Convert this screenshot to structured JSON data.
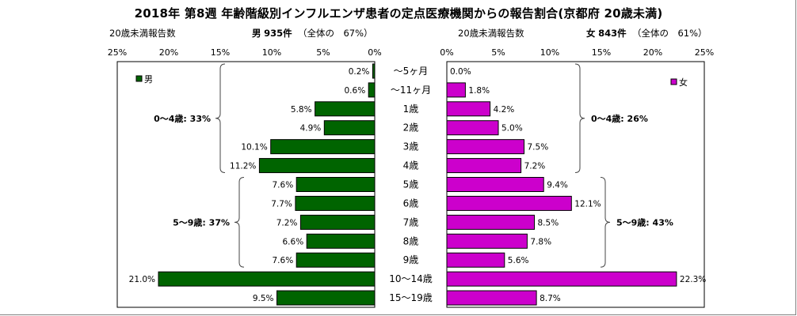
{
  "title": "2018年 第8週 年齢階級別インフルエンザ患者の定点医療機関からの報告割合(京都府 20歳未満)",
  "male_header": {
    "label": "20歳未満報告数",
    "sex": "男",
    "count": "935件",
    "share": "（全体の　67%）"
  },
  "female_header": {
    "label": "20歳未満報告数",
    "sex": "女",
    "count": "843件",
    "share": "（全体の　61%）"
  },
  "chart_data": {
    "type": "bar",
    "orientation": "horizontal-butterfly",
    "categories": [
      "〜5ヶ月",
      "〜11ヶ月",
      "1歳",
      "2歳",
      "3歳",
      "4歳",
      "5歳",
      "6歳",
      "7歳",
      "8歳",
      "9歳",
      "10〜14歳",
      "15〜19歳"
    ],
    "series": [
      {
        "name": "男",
        "color": "#006400",
        "values": [
          0.2,
          0.6,
          5.8,
          4.9,
          10.1,
          11.2,
          7.6,
          7.7,
          7.2,
          6.6,
          7.6,
          21.0,
          9.5
        ],
        "labels": [
          "0.2%",
          "0.6%",
          "5.8%",
          "4.9%",
          "10.1%",
          "11.2%",
          "7.6%",
          "7.7%",
          "7.2%",
          "6.6%",
          "7.6%",
          "21.0%",
          "9.5%"
        ]
      },
      {
        "name": "女",
        "color": "#cc00cc",
        "values": [
          0.0,
          1.8,
          4.2,
          5.0,
          7.5,
          7.2,
          9.4,
          12.1,
          8.5,
          7.8,
          5.6,
          22.3,
          8.7
        ],
        "labels": [
          "0.0%",
          "1.8%",
          "4.2%",
          "5.0%",
          "7.5%",
          "7.2%",
          "9.4%",
          "12.1%",
          "8.5%",
          "7.8%",
          "5.6%",
          "22.3%",
          "8.7%"
        ]
      }
    ],
    "xlim": [
      0,
      25
    ],
    "male_ticks": [
      "25%",
      "20%",
      "15%",
      "10%",
      "5%",
      "0%"
    ],
    "female_ticks": [
      "0%",
      "5%",
      "10%",
      "15%",
      "20%",
      "25%"
    ],
    "groups": {
      "male": [
        {
          "label": "0〜4歳: 33%",
          "from": 0,
          "to": 5
        },
        {
          "label": "5〜9歳: 37%",
          "from": 6,
          "to": 10
        }
      ],
      "female": [
        {
          "label": "0〜4歳: 26%",
          "from": 0,
          "to": 5
        },
        {
          "label": "5〜9歳: 43%",
          "from": 6,
          "to": 10
        }
      ]
    }
  }
}
